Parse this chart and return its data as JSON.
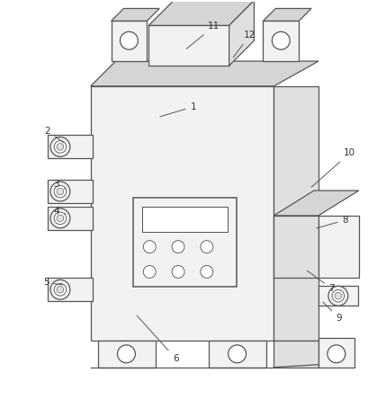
{
  "bg_color": "#ffffff",
  "line_color": "#555555",
  "fill_front": "#f2f2f2",
  "fill_side": "#e0e0e0",
  "fill_top": "#d5d5d5",
  "fill_white": "#ffffff"
}
